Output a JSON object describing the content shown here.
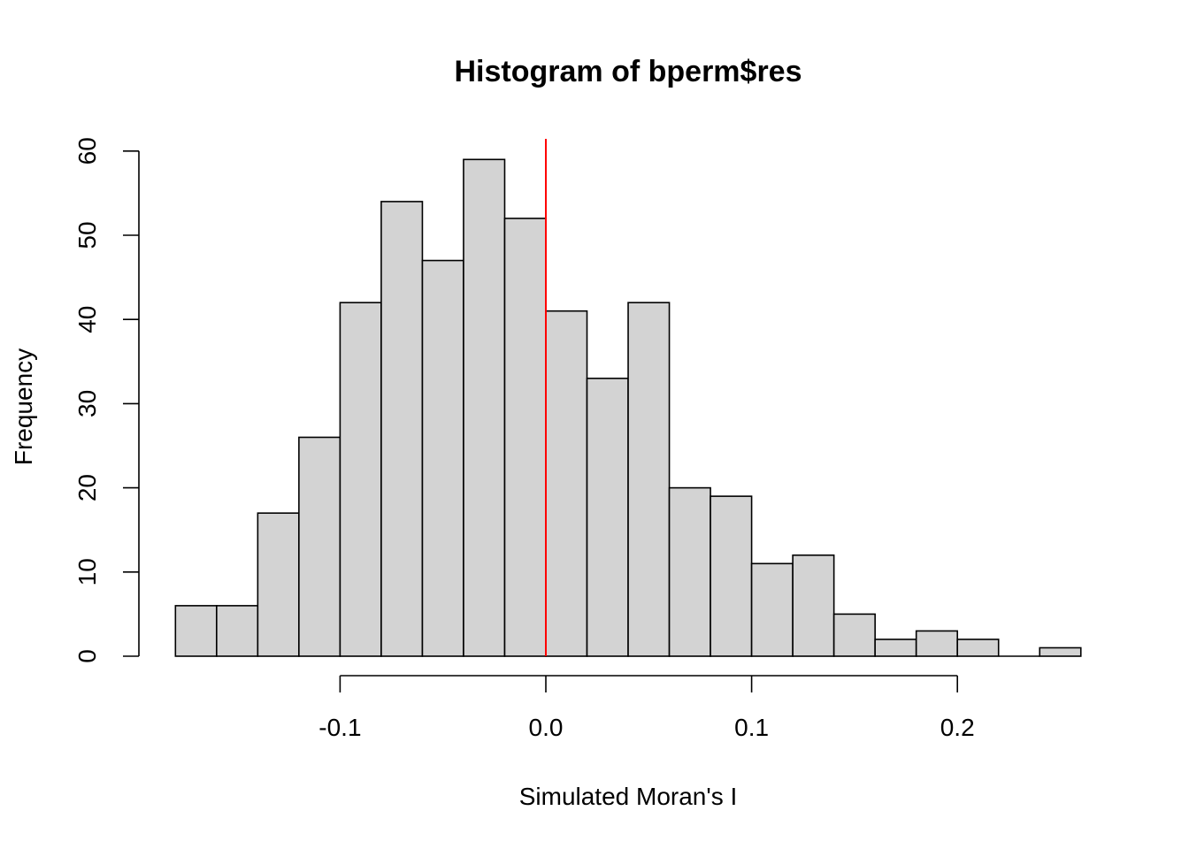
{
  "chart_data": {
    "type": "bar",
    "subtype": "histogram",
    "title": "Histogram of bperm$res",
    "xlabel": "Simulated Moran's I",
    "ylabel": "Frequency",
    "bin_edges": [
      -0.18,
      -0.16,
      -0.14,
      -0.12,
      -0.1,
      -0.08,
      -0.06,
      -0.04,
      -0.02,
      0.0,
      0.02,
      0.04,
      0.06,
      0.08,
      0.1,
      0.12,
      0.14,
      0.16,
      0.18,
      0.2,
      0.22,
      0.24,
      0.26
    ],
    "values": [
      6,
      6,
      17,
      26,
      42,
      54,
      47,
      59,
      52,
      41,
      33,
      42,
      20,
      19,
      11,
      12,
      5,
      2,
      3,
      2,
      0,
      1
    ],
    "xlim": [
      -0.18,
      0.26
    ],
    "ylim": [
      0,
      60
    ],
    "x_ticks": [
      -0.1,
      0.0,
      0.1,
      0.2
    ],
    "x_tick_labels": [
      "-0.1",
      "0.0",
      "0.1",
      "0.2"
    ],
    "y_ticks": [
      0,
      10,
      20,
      30,
      40,
      50,
      60
    ],
    "y_tick_labels": [
      "0",
      "10",
      "20",
      "30",
      "40",
      "50",
      "60"
    ],
    "reference_line": {
      "x": 0.0,
      "color": "#ff0000"
    },
    "bar_fill": "#d3d3d3",
    "bar_stroke": "#000000",
    "grid": false,
    "legend": "none"
  }
}
